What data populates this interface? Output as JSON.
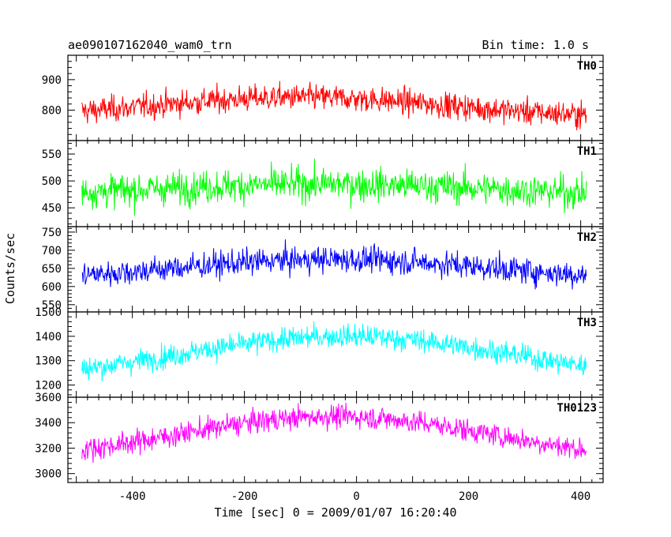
{
  "header": {
    "title": "ae090107162040_wam0_trn",
    "bin_time": "Bin time: 1.0 s"
  },
  "chart_data": {
    "type": "line",
    "xlabel": "Time [sec] 0 = 2009/01/07 16:20:40",
    "ylabel": "Counts/sec",
    "xlim": [
      -515,
      440
    ],
    "x_range": [
      -490,
      410
    ],
    "x_step": 1,
    "xticks_major": [
      -400,
      -200,
      0,
      200,
      400
    ],
    "panels": [
      {
        "name": "TH0",
        "color": "#ff0000",
        "ylim": [
          700,
          980
        ],
        "yticks": [
          800,
          900
        ],
        "ytick_labels": [
          "800",
          "900"
        ],
        "profile": {
          "base": 775,
          "amp": 75,
          "peaks": [
            -210,
            10
          ],
          "width": 230,
          "noise": 45
        }
      },
      {
        "name": "TH1",
        "color": "#00ff00",
        "ylim": [
          415,
          575
        ],
        "yticks": [
          450,
          500,
          550
        ],
        "ytick_labels": [
          "450",
          "500",
          "550"
        ],
        "profile": {
          "base": 470,
          "amp": 25,
          "peaks": [
            -150,
            30
          ],
          "width": 300,
          "noise": 32
        }
      },
      {
        "name": "TH2",
        "color": "#0000ff",
        "ylim": [
          530,
          765
        ],
        "yticks": [
          550,
          600,
          650,
          700,
          750
        ],
        "ytick_labels": [
          "550",
          "600",
          "650",
          "700",
          "750"
        ],
        "profile": {
          "base": 615,
          "amp": 60,
          "peaks": [
            -40
          ],
          "width": 280,
          "noise": 38
        }
      },
      {
        "name": "TH3",
        "color": "#00ffff",
        "ylim": [
          1150,
          1500
        ],
        "yticks": [
          1200,
          1300,
          1400,
          1500
        ],
        "ytick_labels": [
          "1200",
          "1300",
          "1400",
          "1500"
        ],
        "profile": {
          "base": 1210,
          "amp": 190,
          "peaks": [
            -20
          ],
          "width": 300,
          "noise": 50
        }
      },
      {
        "name": "TH0123",
        "color": "#ff00ff",
        "ylim": [
          2930,
          3600
        ],
        "yticks": [
          3000,
          3200,
          3400,
          3600
        ],
        "ytick_labels": [
          "3000",
          "3200",
          "3400",
          "3600"
        ],
        "profile": {
          "base": 3090,
          "amp": 360,
          "peaks": [
            -40
          ],
          "width": 280,
          "noise": 95
        }
      }
    ]
  }
}
